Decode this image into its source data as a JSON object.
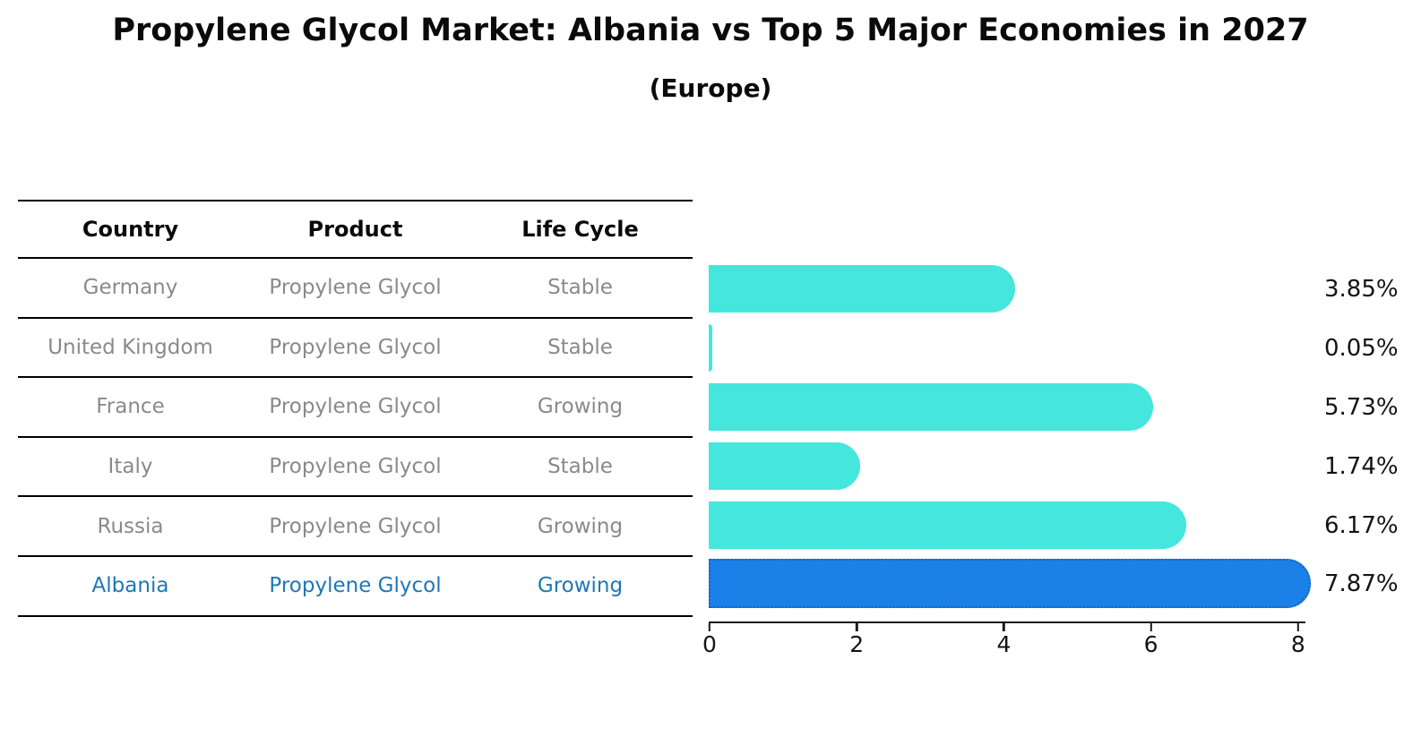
{
  "title": "Propylene Glycol Market: Albania vs Top 5 Major Economies in 2027",
  "subtitle": "(Europe)",
  "table": {
    "headers": [
      "Country",
      "Product",
      "Life Cycle"
    ],
    "rows": [
      {
        "country": "Germany",
        "product": "Propylene Glycol",
        "life_cycle": "Stable"
      },
      {
        "country": "United Kingdom",
        "product": "Propylene Glycol",
        "life_cycle": "Stable"
      },
      {
        "country": "France",
        "product": "Propylene Glycol",
        "life_cycle": "Growing"
      },
      {
        "country": "Italy",
        "product": "Propylene Glycol",
        "life_cycle": "Stable"
      },
      {
        "country": "Russia",
        "product": "Propylene Glycol",
        "life_cycle": "Growing"
      },
      {
        "country": "Albania",
        "product": "Propylene Glycol",
        "life_cycle": "Growing"
      }
    ],
    "highlight_row": "Albania"
  },
  "chart_data": {
    "type": "bar",
    "orientation": "horizontal",
    "title": "Propylene Glycol Market: Albania vs Top 5 Major Economies in 2027",
    "subtitle": "(Europe)",
    "categories": [
      "Germany",
      "United Kingdom",
      "France",
      "Italy",
      "Russia",
      "Albania"
    ],
    "values": [
      3.85,
      0.05,
      5.73,
      1.74,
      6.17,
      7.87
    ],
    "labels": [
      "3.85%",
      "0.05%",
      "5.73%",
      "1.74%",
      "6.17%",
      "7.87%"
    ],
    "unit": "%",
    "x_ticks": [
      "0",
      "2",
      "4",
      "6",
      "8"
    ],
    "xlim": [
      0,
      8.1
    ],
    "grid": false,
    "legend": false,
    "highlight_index": 5,
    "colors": {
      "default_bar": "#45e6dc",
      "highlight_bar": "#1b80e8",
      "highlight_bar_border": "#1264c8",
      "highlight_text": "#1f77b4",
      "row_text": "#8a8a8a",
      "header_text": "#0a0a0a",
      "axis": "#1a1a1a"
    }
  }
}
